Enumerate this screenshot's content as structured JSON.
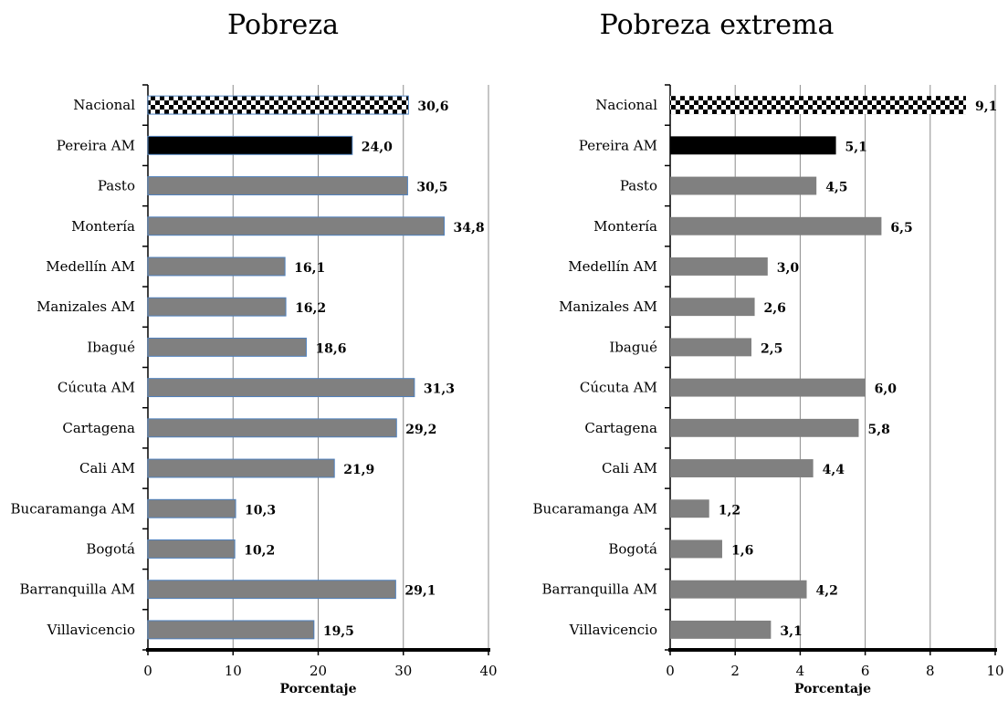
{
  "chart_data": [
    {
      "type": "bar",
      "orientation": "horizontal",
      "title": "Pobreza",
      "xlabel": "Porcentaje",
      "ylabel": "",
      "xlim": [
        0,
        40
      ],
      "xticks": [
        "0",
        "10",
        "20",
        "30",
        "40"
      ],
      "grid": "vertical",
      "categories": [
        "Nacional",
        "Pereira AM",
        "Pasto",
        "Montería",
        "Medellín AM",
        "Manizales AM",
        "Ibagué",
        "Cúcuta AM",
        "Cartagena",
        "Cali AM",
        "Bucaramanga AM",
        "Bogotá",
        "Barranquilla AM",
        "Villavicencio"
      ],
      "values": [
        30.6,
        24.0,
        30.5,
        34.8,
        16.1,
        16.2,
        18.6,
        31.3,
        29.2,
        21.9,
        10.3,
        10.2,
        29.1,
        19.5
      ],
      "value_labels": [
        "30,6",
        "24,0",
        "30,5",
        "34,8",
        "16,1",
        "16,2",
        "18,6",
        "31,3",
        "29,2",
        "21,9",
        "10,3",
        "10,2",
        "29,1",
        "19,5"
      ],
      "bar_styles": [
        "checker",
        "black",
        "gray",
        "gray",
        "gray",
        "gray",
        "gray",
        "gray",
        "gray",
        "gray",
        "gray",
        "gray",
        "gray",
        "gray"
      ],
      "bar_outline_color": "#4f81bd"
    },
    {
      "type": "bar",
      "orientation": "horizontal",
      "title": "Pobreza extrema",
      "xlabel": "Porcentaje",
      "ylabel": "",
      "xlim": [
        0,
        10
      ],
      "xticks": [
        "0",
        "2",
        "4",
        "6",
        "8",
        "10"
      ],
      "grid": "vertical",
      "categories": [
        "Nacional",
        "Pereira AM",
        "Pasto",
        "Montería",
        "Medellín AM",
        "Manizales AM",
        "Ibagué",
        "Cúcuta AM",
        "Cartagena",
        "Cali AM",
        "Bucaramanga AM",
        "Bogotá",
        "Barranquilla AM",
        "Villavicencio"
      ],
      "values": [
        9.1,
        5.1,
        4.5,
        6.5,
        3.0,
        2.6,
        2.5,
        6.0,
        5.8,
        4.4,
        1.2,
        1.6,
        4.2,
        3.1
      ],
      "value_labels": [
        "9,1",
        "5,1",
        "4,5",
        "6,5",
        "3,0",
        "2,6",
        "2,5",
        "6,0",
        "5,8",
        "4,4",
        "1,2",
        "1,6",
        "4,2",
        "3,1"
      ],
      "bar_styles": [
        "checker",
        "black",
        "gray",
        "gray",
        "gray",
        "gray",
        "gray",
        "gray",
        "gray",
        "gray",
        "gray",
        "gray",
        "gray",
        "gray"
      ],
      "bar_outline_color": "none"
    }
  ],
  "colors": {
    "gray_bar": "#808080",
    "black_bar": "#000000",
    "grid": "#8c8c8c",
    "axis": "#000000"
  }
}
